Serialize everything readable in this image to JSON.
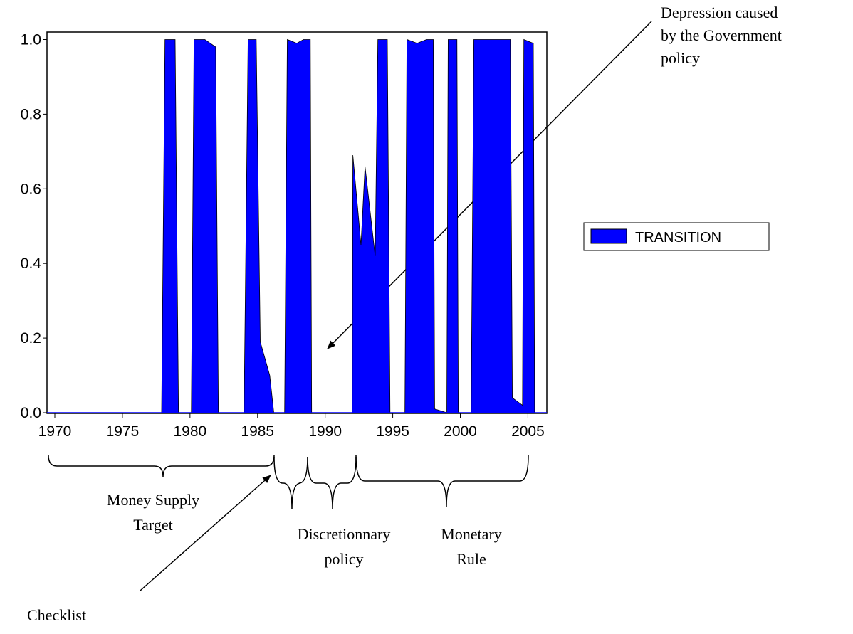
{
  "chart_data": {
    "type": "area",
    "series": [
      {
        "name": "TRANSITION",
        "color": "#0000ff",
        "x": [
          1970,
          1977.9,
          1978.15,
          1978.9,
          1979.15,
          1980.1,
          1980.3,
          1981.1,
          1981.9,
          1982.1,
          1984.0,
          1984.3,
          1984.9,
          1985.2,
          1985.9,
          1986.2,
          1987.0,
          1987.2,
          1987.9,
          1988.4,
          1988.9,
          1989.0,
          1992.0,
          1992.05,
          1992.65,
          1992.95,
          1993.7,
          1993.9,
          1994.6,
          1994.8,
          1995.9,
          1996.05,
          1996.8,
          1997.5,
          1998.0,
          1998.1,
          1999.0,
          1999.1,
          1999.75,
          1999.85,
          2000.8,
          2001.0,
          2003.7,
          2003.85,
          2004.6,
          2004.7,
          2005.4,
          2005.5
        ],
        "values": [
          0,
          0,
          1.0,
          1.0,
          0,
          0,
          1.0,
          1.0,
          0.98,
          0,
          0,
          1.0,
          1.0,
          0.19,
          0.1,
          0,
          0,
          1.0,
          0.99,
          1.0,
          1.0,
          0,
          0,
          0.69,
          0.45,
          0.66,
          0.42,
          1.0,
          1.0,
          0,
          0,
          1.0,
          0.99,
          1.0,
          1.0,
          0.01,
          0,
          1.0,
          1.0,
          0,
          0,
          1.0,
          1.0,
          0.04,
          0.02,
          1.0,
          0.99,
          0
        ]
      }
    ],
    "xlim": [
      1969.42,
      2006.4
    ],
    "xticks": [
      1970,
      1975,
      1980,
      1985,
      1990,
      1995,
      2000,
      2005
    ],
    "ylim": [
      0,
      1.02
    ],
    "yticks": [
      {
        "value": 0,
        "label": "0.0"
      },
      {
        "value": 0.2,
        "label": "0.2"
      },
      {
        "value": 0.4,
        "label": "0.4"
      },
      {
        "value": 0.6,
        "label": "0.6"
      },
      {
        "value": 0.8,
        "label": "0.8"
      },
      {
        "value": 1,
        "label": "1.0"
      }
    ],
    "legend_position": "right",
    "annotations": {
      "depression": [
        "Depression caused",
        "by the Government",
        "policy"
      ],
      "money_supply": [
        "Money Supply",
        "Target"
      ],
      "discretionary": [
        "Discretionnary",
        "policy"
      ],
      "monetary_rule": [
        "Monetary",
        "Rule"
      ],
      "checklist": [
        "Checklist"
      ]
    }
  }
}
